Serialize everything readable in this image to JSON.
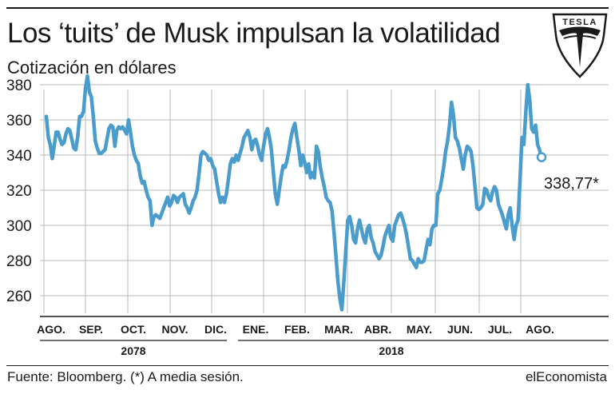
{
  "header": {
    "title": "Los ‘tuits’ de Musk impulsan la volatilidad",
    "subtitle": "Cotización en dólares"
  },
  "logo": {
    "text": "TESLA",
    "icon": "tesla-logo-icon"
  },
  "footer": {
    "source": "Fuente: Bloomberg. (*) A media sesión.",
    "brand": "elEconomista"
  },
  "colors": {
    "line": "#4a9ccc",
    "grid": "#b8b8b8",
    "text": "#1a1a1a"
  },
  "chart_data": {
    "type": "line",
    "ylim": [
      250,
      385
    ],
    "yticks": [
      260,
      280,
      300,
      320,
      340,
      360,
      380
    ],
    "month_labels": [
      "AGO.",
      "SEP.",
      "OCT.",
      "NOV.",
      "DIC.",
      "ENE.",
      "FEB.",
      "MAR.",
      "ABR.",
      "MAY.",
      "JUN.",
      "JUL.",
      "AGO."
    ],
    "year_labels": [
      "2078",
      "2018"
    ],
    "grid": true,
    "end_annotation": "338,77*",
    "series": [
      {
        "values": [
          362,
          350,
          346,
          338,
          345,
          353,
          353,
          349,
          346,
          347,
          352,
          355,
          354,
          349,
          344,
          343,
          350,
          362,
          362,
          365,
          378,
          385,
          376,
          373,
          362,
          348,
          344,
          341,
          341,
          342,
          343,
          349,
          355,
          357,
          356,
          345,
          354,
          356,
          355,
          356,
          354,
          352,
          360,
          353,
          345,
          340,
          337,
          335,
          328,
          324,
          325,
          320,
          316,
          314,
          300,
          305,
          306,
          305,
          304,
          307,
          310,
          313,
          316,
          311,
          313,
          317,
          316,
          313,
          316,
          317,
          318,
          312,
          310,
          307,
          310,
          314,
          316,
          320,
          329,
          340,
          342,
          341,
          340,
          337,
          338,
          334,
          332,
          325,
          318,
          313,
          316,
          313,
          318,
          326,
          335,
          338,
          336,
          340,
          337,
          341,
          345,
          350,
          352,
          354,
          350,
          343,
          348,
          349,
          345,
          340,
          337,
          345,
          352,
          355,
          350,
          343,
          330,
          318,
          312,
          320,
          328,
          334,
          333,
          337,
          343,
          350,
          355,
          358,
          350,
          343,
          334,
          340,
          336,
          330,
          335,
          327,
          330,
          327,
          345,
          342,
          333,
          327,
          322,
          316,
          314,
          313,
          308,
          296,
          282,
          268,
          258,
          252,
          268,
          285,
          303,
          305,
          300,
          292,
          290,
          298,
          303,
          298,
          293,
          290,
          298,
          300,
          293,
          290,
          285,
          283,
          281,
          283,
          288,
          294,
          297,
          300,
          293,
          291,
          300,
          303,
          306,
          307,
          304,
          300,
          295,
          288,
          281,
          280,
          278,
          276,
          281,
          279,
          279,
          280,
          286,
          292,
          289,
          298,
          300,
          300,
          318,
          320,
          326,
          333,
          342,
          348,
          357,
          370,
          363,
          350,
          348,
          344,
          338,
          332,
          340,
          345,
          344,
          342,
          334,
          322,
          310,
          309,
          310,
          312,
          321,
          320,
          316,
          314,
          319,
          322,
          320,
          312,
          309,
          306,
          302,
          298,
          306,
          310,
          300,
          292,
          300,
          303,
          325,
          350,
          346,
          365,
          380,
          371,
          355,
          353,
          357,
          346,
          343,
          338.77
        ]
      }
    ]
  }
}
